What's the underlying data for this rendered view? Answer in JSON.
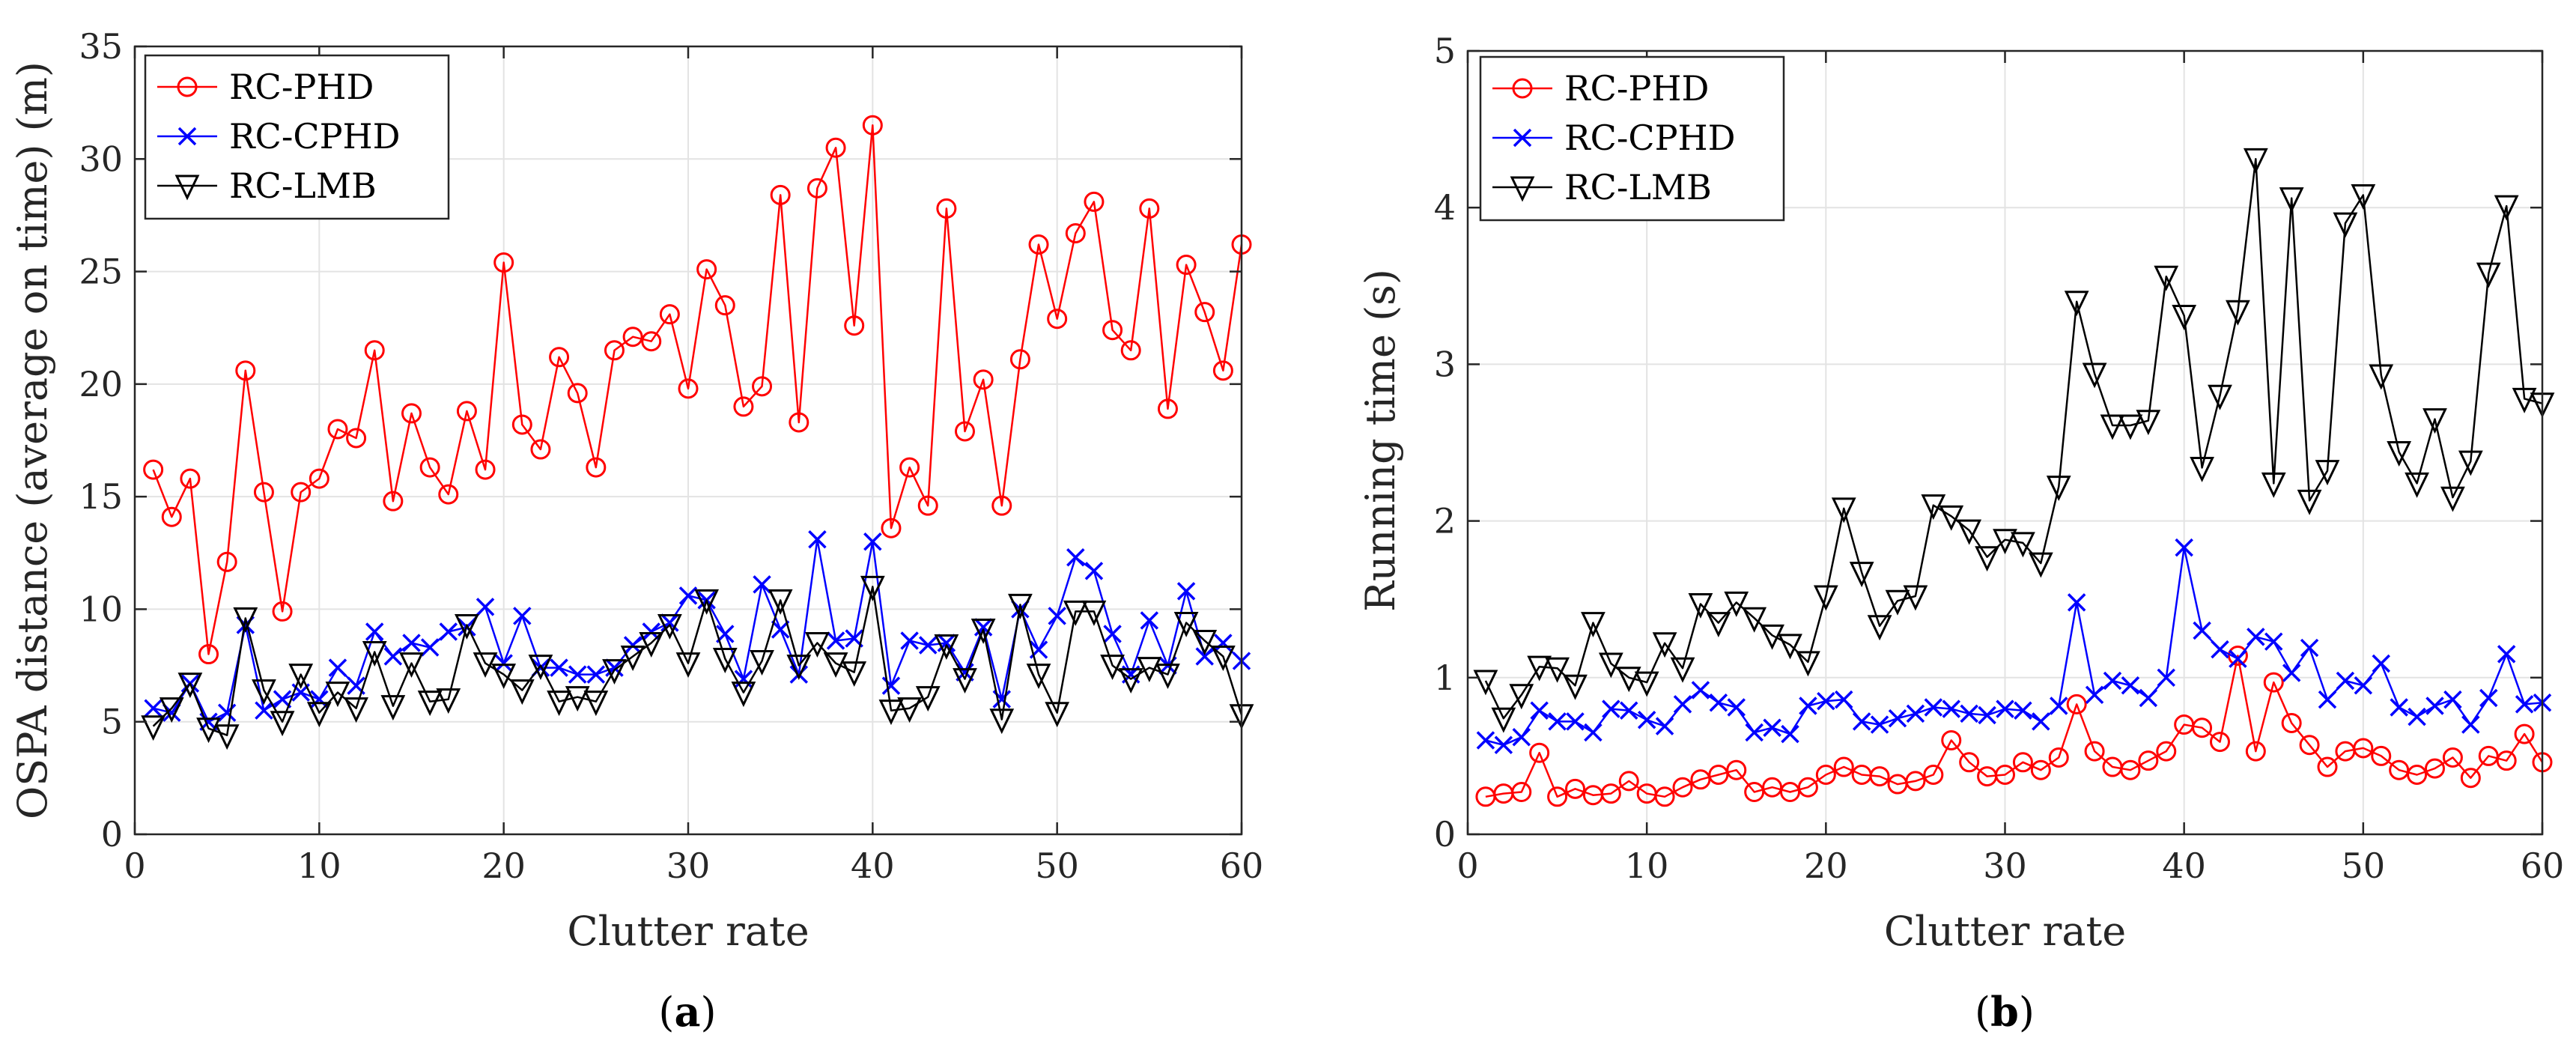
{
  "chart_data": [
    {
      "type": "line",
      "caption_open": "(",
      "caption_letter": "a",
      "caption_close": ")",
      "xlabel": "Clutter rate",
      "ylabel": "OSPA distance (average on time) (m)",
      "xlim": [
        0,
        60
      ],
      "ylim": [
        0,
        35
      ],
      "xticks": [
        0,
        10,
        20,
        30,
        40,
        50,
        60
      ],
      "yticks": [
        0,
        5,
        10,
        15,
        20,
        25,
        30,
        35
      ],
      "grid": true,
      "legend_position": "top-left",
      "x": [
        1,
        2,
        3,
        4,
        5,
        6,
        7,
        8,
        9,
        10,
        11,
        12,
        13,
        14,
        15,
        16,
        17,
        18,
        19,
        20,
        21,
        22,
        23,
        24,
        25,
        26,
        27,
        28,
        29,
        30,
        31,
        32,
        33,
        34,
        35,
        36,
        37,
        38,
        39,
        40,
        41,
        42,
        43,
        44,
        45,
        46,
        47,
        48,
        49,
        50,
        51,
        52,
        53,
        54,
        55,
        56,
        57,
        58,
        59,
        60
      ],
      "series": [
        {
          "name": "RC-PHD",
          "color": "#ff0000",
          "marker": "circle",
          "values": [
            16.2,
            14.1,
            15.8,
            8.0,
            12.1,
            20.6,
            15.2,
            9.9,
            15.2,
            15.8,
            18.0,
            17.6,
            21.5,
            14.8,
            18.7,
            16.3,
            15.1,
            18.8,
            16.2,
            25.4,
            18.2,
            17.1,
            21.2,
            19.6,
            16.3,
            21.5,
            22.1,
            21.9,
            23.1,
            19.8,
            25.1,
            23.5,
            19.0,
            19.9,
            28.4,
            18.3,
            28.7,
            30.5,
            22.6,
            31.5,
            13.6,
            16.3,
            14.6,
            27.8,
            17.9,
            20.2,
            14.6,
            21.1,
            26.2,
            22.9,
            26.7,
            28.1,
            22.4,
            21.5,
            27.8,
            18.9,
            25.3,
            23.2,
            20.6,
            26.2
          ]
        },
        {
          "name": "RC-CPHD",
          "color": "#0000ff",
          "marker": "x",
          "values": [
            5.6,
            5.4,
            6.7,
            5.0,
            5.4,
            9.3,
            5.5,
            6.0,
            6.3,
            6.0,
            7.4,
            6.6,
            9.0,
            7.9,
            8.5,
            8.3,
            9.0,
            9.2,
            10.1,
            7.6,
            9.7,
            7.4,
            7.4,
            7.1,
            7.1,
            7.4,
            8.4,
            9.0,
            9.4,
            10.6,
            10.4,
            8.9,
            6.9,
            11.1,
            9.1,
            7.1,
            13.1,
            8.6,
            8.7,
            13.0,
            6.6,
            8.6,
            8.4,
            8.5,
            7.2,
            9.2,
            6.0,
            10.0,
            8.2,
            9.7,
            12.3,
            11.7,
            8.9,
            7.1,
            9.5,
            7.5,
            10.8,
            7.9,
            8.5,
            7.7
          ]
        },
        {
          "name": "RC-LMB",
          "color": "#000000",
          "marker": "triangle-down",
          "values": [
            4.8,
            5.6,
            6.7,
            4.7,
            4.4,
            9.6,
            6.4,
            5.0,
            7.1,
            5.4,
            6.3,
            5.6,
            8.1,
            5.7,
            7.6,
            5.9,
            6.0,
            9.3,
            7.6,
            7.1,
            6.4,
            7.5,
            5.9,
            6.1,
            5.9,
            7.3,
            7.9,
            8.5,
            9.3,
            7.6,
            10.4,
            7.8,
            6.3,
            7.7,
            10.4,
            7.5,
            8.5,
            7.6,
            7.2,
            11.0,
            5.5,
            5.6,
            6.1,
            8.4,
            6.9,
            9.1,
            5.1,
            10.2,
            7.1,
            5.4,
            9.9,
            9.9,
            7.5,
            6.9,
            7.4,
            7.1,
            9.4,
            8.6,
            7.9,
            5.3
          ]
        }
      ]
    },
    {
      "type": "line",
      "caption_open": "(",
      "caption_letter": "b",
      "caption_close": ")",
      "xlabel": "Clutter rate",
      "ylabel": "Running time (s)",
      "xlim": [
        0,
        60
      ],
      "ylim": [
        0,
        5
      ],
      "xticks": [
        0,
        10,
        20,
        30,
        40,
        50,
        60
      ],
      "yticks": [
        0,
        1,
        2,
        3,
        4,
        5
      ],
      "grid": true,
      "legend_position": "top-left",
      "x": [
        1,
        2,
        3,
        4,
        5,
        6,
        7,
        8,
        9,
        10,
        11,
        12,
        13,
        14,
        15,
        16,
        17,
        18,
        19,
        20,
        21,
        22,
        23,
        24,
        25,
        26,
        27,
        28,
        29,
        30,
        31,
        32,
        33,
        34,
        35,
        36,
        37,
        38,
        39,
        40,
        41,
        42,
        43,
        44,
        45,
        46,
        47,
        48,
        49,
        50,
        51,
        52,
        53,
        54,
        55,
        56,
        57,
        58,
        59,
        60
      ],
      "series": [
        {
          "name": "RC-PHD",
          "color": "#ff0000",
          "marker": "circle",
          "values": [
            0.24,
            0.26,
            0.27,
            0.52,
            0.24,
            0.29,
            0.25,
            0.26,
            0.34,
            0.26,
            0.24,
            0.3,
            0.35,
            0.38,
            0.41,
            0.27,
            0.3,
            0.27,
            0.3,
            0.38,
            0.43,
            0.38,
            0.37,
            0.32,
            0.34,
            0.38,
            0.6,
            0.46,
            0.37,
            0.38,
            0.46,
            0.41,
            0.49,
            0.83,
            0.53,
            0.43,
            0.41,
            0.47,
            0.53,
            0.7,
            0.68,
            0.59,
            1.14,
            0.53,
            0.97,
            0.71,
            0.57,
            0.43,
            0.53,
            0.55,
            0.5,
            0.41,
            0.38,
            0.42,
            0.49,
            0.36,
            0.5,
            0.47,
            0.64,
            0.46
          ]
        },
        {
          "name": "RC-CPHD",
          "color": "#0000ff",
          "marker": "x",
          "values": [
            0.6,
            0.57,
            0.62,
            0.79,
            0.72,
            0.72,
            0.65,
            0.8,
            0.79,
            0.73,
            0.69,
            0.83,
            0.92,
            0.84,
            0.81,
            0.65,
            0.68,
            0.64,
            0.82,
            0.85,
            0.86,
            0.72,
            0.7,
            0.74,
            0.77,
            0.81,
            0.8,
            0.77,
            0.76,
            0.8,
            0.79,
            0.72,
            0.82,
            1.48,
            0.89,
            0.98,
            0.95,
            0.87,
            1.0,
            1.83,
            1.3,
            1.18,
            1.12,
            1.26,
            1.23,
            1.03,
            1.19,
            0.86,
            0.98,
            0.95,
            1.09,
            0.81,
            0.75,
            0.82,
            0.86,
            0.7,
            0.87,
            1.15,
            0.83,
            0.84
          ]
        },
        {
          "name": "RC-LMB",
          "color": "#000000",
          "marker": "triangle-down",
          "values": [
            0.98,
            0.74,
            0.89,
            1.07,
            1.06,
            0.95,
            1.35,
            1.09,
            1.0,
            0.97,
            1.22,
            1.06,
            1.47,
            1.35,
            1.48,
            1.38,
            1.27,
            1.21,
            1.1,
            1.52,
            2.08,
            1.67,
            1.33,
            1.49,
            1.52,
            2.1,
            2.03,
            1.94,
            1.77,
            1.88,
            1.86,
            1.73,
            2.22,
            3.4,
            2.94,
            2.61,
            2.61,
            2.64,
            3.56,
            3.31,
            2.34,
            2.8,
            3.34,
            4.31,
            2.24,
            4.06,
            2.13,
            2.32,
            3.9,
            4.08,
            2.93,
            2.44,
            2.24,
            2.65,
            2.15,
            2.38,
            3.58,
            4.01,
            2.78,
            2.75
          ]
        }
      ]
    }
  ]
}
